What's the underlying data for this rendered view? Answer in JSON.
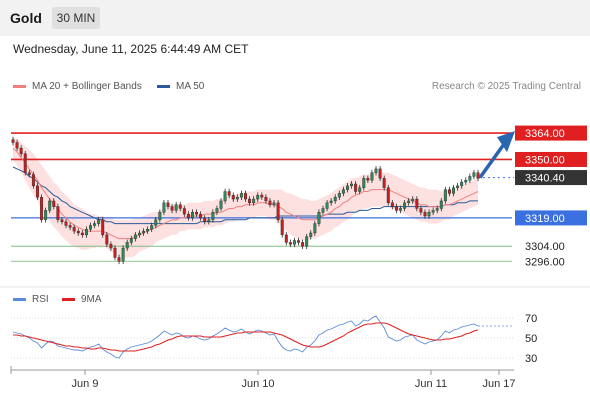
{
  "header": {
    "instrument": "Gold",
    "timeframe": "30 MIN"
  },
  "timestamp": "Wednesday, June 11, 2025 6:44:49 AM CET",
  "legend_top": [
    {
      "label": "MA 20 + Bollinger Bands",
      "color": "#f08080"
    },
    {
      "label": "MA 50",
      "color": "#2a5a9a"
    }
  ],
  "legend_bottom": [
    {
      "label": "RSI",
      "color": "#5b8bd9"
    },
    {
      "label": "9MA",
      "color": "#e02020"
    }
  ],
  "source": "Research © 2025 Trading Central",
  "colors": {
    "up": "#2e8b57",
    "down": "#c81e1e",
    "resistance": "#e02020",
    "pivot": "#3a70e0",
    "support": "#6fb36f",
    "band": "#fde1e1"
  },
  "chart_data": [
    {
      "type": "candlestick",
      "x_labels": [
        "Jun 9",
        "Jun 10",
        "Jun 11",
        "Jun 17"
      ],
      "ylim": [
        3285,
        3372
      ],
      "levels": [
        {
          "label": "3364.00",
          "value": 3364,
          "kind": "resistance"
        },
        {
          "label": "3350.00",
          "value": 3350,
          "kind": "resistance"
        },
        {
          "label": "3340.40",
          "value": 3340.4,
          "kind": "last"
        },
        {
          "label": "3319.00",
          "value": 3319,
          "kind": "pivot"
        },
        {
          "label": "3304.00",
          "value": 3304,
          "kind": "support"
        },
        {
          "label": "3296.00",
          "value": 3296,
          "kind": "support"
        }
      ],
      "close": [
        3359,
        3356,
        3353,
        3343,
        3342,
        3336,
        3330,
        3318,
        3323,
        3328,
        3325,
        3318,
        3317,
        3315,
        3314,
        3312,
        3311,
        3310,
        3313,
        3315,
        3316,
        3318,
        3310,
        3305,
        3303,
        3298,
        3296,
        3303,
        3306,
        3308,
        3310,
        3311,
        3312,
        3313,
        3315,
        3318,
        3322,
        3327,
        3325,
        3323,
        3326,
        3324,
        3321,
        3319,
        3322,
        3321,
        3319,
        3317,
        3318,
        3322,
        3324,
        3328,
        3333,
        3331,
        3329,
        3330,
        3332,
        3329,
        3327,
        3329,
        3331,
        3330,
        3328,
        3326,
        3327,
        3318,
        3310,
        3306,
        3305,
        3307,
        3306,
        3304,
        3309,
        3311,
        3316,
        3322,
        3324,
        3327,
        3328,
        3330,
        3332,
        3334,
        3336,
        3337,
        3333,
        3335,
        3340,
        3339,
        3343,
        3345,
        3340,
        3335,
        3327,
        3325,
        3323,
        3324,
        3327,
        3328,
        3329,
        3324,
        3322,
        3320,
        3322,
        3323,
        3324,
        3328,
        3334,
        3332,
        3335,
        3336,
        3338,
        3339,
        3341,
        3343,
        3340
      ],
      "ma20": [
        3356,
        3354,
        3351,
        3348,
        3345,
        3342,
        3339,
        3335,
        3332,
        3329,
        3326,
        3324,
        3321,
        3319,
        3317,
        3315,
        3314,
        3313,
        3312,
        3312,
        3312,
        3312,
        3312,
        3311,
        3310,
        3309,
        3308,
        3308,
        3308,
        3308,
        3309,
        3310,
        3311,
        3312,
        3313,
        3314,
        3315,
        3316,
        3317,
        3318,
        3318,
        3319,
        3319,
        3320,
        3320,
        3320,
        3320,
        3321,
        3321,
        3321,
        3322,
        3322,
        3323,
        3324,
        3324,
        3325,
        3325,
        3326,
        3326,
        3326,
        3327,
        3327,
        3327,
        3326,
        3326,
        3325,
        3324,
        3322,
        3321,
        3320,
        3319,
        3318,
        3318,
        3318,
        3318,
        3319,
        3320,
        3321,
        3322,
        3324,
        3325,
        3327,
        3328,
        3330,
        3331,
        3332,
        3333,
        3333,
        3334,
        3334,
        3334,
        3334,
        3334,
        3333,
        3332,
        3331,
        3330,
        3329,
        3328,
        3327,
        3326,
        3326,
        3325,
        3325,
        3325,
        3325,
        3326,
        3326,
        3327,
        3328,
        3329,
        3330,
        3331,
        3332,
        3333
      ],
      "bb_width": [
        6,
        7,
        8,
        9,
        10,
        11,
        11,
        12,
        12,
        12,
        12,
        12,
        12,
        12,
        12,
        11,
        11,
        11,
        10,
        9,
        9,
        8,
        8,
        8,
        9,
        9,
        10,
        10,
        10,
        10,
        10,
        9,
        9,
        9,
        9,
        8,
        8,
        8,
        8,
        8,
        8,
        7,
        7,
        7,
        7,
        7,
        7,
        7,
        7,
        7,
        7,
        7,
        7,
        7,
        7,
        7,
        7,
        7,
        7,
        7,
        7,
        7,
        7,
        8,
        8,
        9,
        10,
        10,
        11,
        11,
        11,
        11,
        11,
        10,
        10,
        10,
        10,
        10,
        10,
        10,
        10,
        10,
        10,
        10,
        9,
        9,
        9,
        9,
        9,
        9,
        9,
        9,
        9,
        9,
        9,
        9,
        9,
        9,
        9,
        9,
        9,
        9,
        9,
        9,
        9,
        8,
        8,
        8,
        7,
        7,
        7,
        7,
        7,
        7,
        7
      ],
      "ma50": [
        3346,
        3345,
        3344,
        3343,
        3341,
        3340,
        3338,
        3336,
        3335,
        3333,
        3331,
        3330,
        3328,
        3327,
        3325,
        3324,
        3323,
        3322,
        3321,
        3320,
        3319,
        3318,
        3318,
        3317,
        3317,
        3316,
        3316,
        3316,
        3316,
        3316,
        3316,
        3316,
        3316,
        3316,
        3316,
        3316,
        3316,
        3316,
        3316,
        3316,
        3316,
        3316,
        3316,
        3316,
        3316,
        3316,
        3317,
        3317,
        3317,
        3317,
        3317,
        3317,
        3318,
        3318,
        3318,
        3318,
        3318,
        3318,
        3319,
        3319,
        3319,
        3319,
        3319,
        3319,
        3319,
        3320,
        3320,
        3320,
        3320,
        3320,
        3320,
        3320,
        3320,
        3320,
        3320,
        3320,
        3320,
        3321,
        3321,
        3321,
        3321,
        3321,
        3322,
        3322,
        3322,
        3323,
        3323,
        3323,
        3324,
        3324,
        3324,
        3325,
        3325,
        3325,
        3325,
        3325,
        3325,
        3325,
        3325,
        3325,
        3325,
        3325,
        3325,
        3325,
        3325,
        3325,
        3326,
        3326,
        3326,
        3327,
        3327,
        3327,
        3328,
        3328,
        3328
      ],
      "forecast": {
        "from": 3340.4,
        "to": 3364
      }
    },
    {
      "type": "line",
      "title": "RSI",
      "ylim": [
        20,
        78
      ],
      "ticks": [
        70,
        50,
        30
      ],
      "rsi": [
        56,
        55,
        54,
        52,
        50,
        47,
        45,
        40,
        44,
        47,
        46,
        42,
        41,
        40,
        39,
        38,
        38,
        37,
        39,
        41,
        42,
        44,
        39,
        36,
        34,
        31,
        30,
        36,
        39,
        41,
        42,
        43,
        44,
        45,
        47,
        50,
        53,
        57,
        55,
        53,
        55,
        54,
        51,
        50,
        52,
        51,
        49,
        48,
        49,
        52,
        54,
        57,
        60,
        58,
        56,
        57,
        59,
        56,
        54,
        56,
        58,
        57,
        55,
        53,
        54,
        47,
        41,
        38,
        37,
        39,
        38,
        36,
        41,
        43,
        47,
        53,
        55,
        58,
        59,
        61,
        63,
        64,
        66,
        67,
        62,
        64,
        68,
        67,
        70,
        72,
        66,
        60,
        51,
        49,
        47,
        48,
        51,
        52,
        53,
        48,
        46,
        44,
        46,
        47,
        48,
        52,
        57,
        55,
        58,
        59,
        61,
        62,
        63,
        64,
        62
      ],
      "ma9": [
        53,
        53,
        52,
        52,
        51,
        50,
        49,
        48,
        47,
        46,
        45,
        44,
        43,
        42,
        42,
        41,
        41,
        40,
        40,
        39,
        39,
        40,
        40,
        39,
        38,
        38,
        37,
        37,
        37,
        37,
        37,
        38,
        39,
        40,
        41,
        43,
        44,
        46,
        48,
        49,
        51,
        52,
        52,
        52,
        52,
        52,
        52,
        51,
        51,
        51,
        51,
        51,
        52,
        53,
        54,
        55,
        55,
        56,
        56,
        56,
        56,
        56,
        56,
        56,
        55,
        54,
        53,
        51,
        49,
        47,
        45,
        43,
        42,
        41,
        41,
        41,
        42,
        44,
        46,
        48,
        50,
        52,
        55,
        57,
        59,
        61,
        63,
        64,
        64,
        65,
        65,
        65,
        64,
        62,
        60,
        58,
        56,
        54,
        53,
        52,
        51,
        50,
        49,
        48,
        48,
        48,
        49,
        49,
        50,
        51,
        52,
        54,
        55,
        57,
        58
      ],
      "reference_line": 62
    }
  ]
}
